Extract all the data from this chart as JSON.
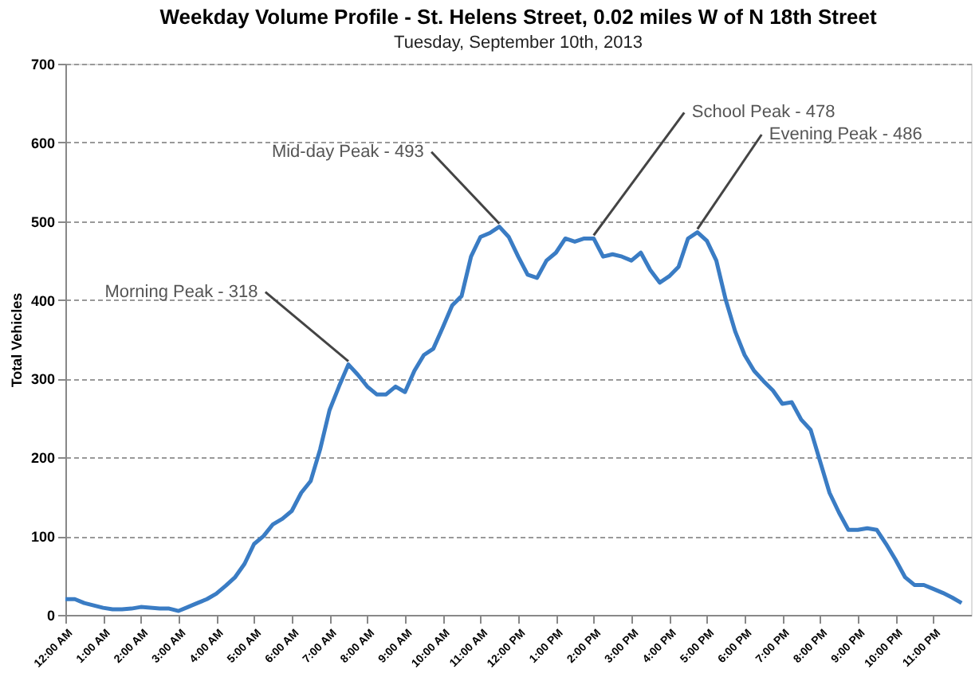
{
  "chart_data": {
    "type": "line",
    "title": "Weekday Volume Profile - St. Helens Street, 0.02 miles W of N 18th Street",
    "subtitle": "Tuesday, September 10th, 2013",
    "ylabel": "Total Vehicles",
    "x": [
      0,
      0.25,
      0.5,
      0.75,
      1,
      1.25,
      1.5,
      1.75,
      2,
      2.25,
      2.5,
      2.75,
      3,
      3.25,
      3.5,
      3.75,
      4,
      4.25,
      4.5,
      4.75,
      5,
      5.25,
      5.5,
      5.75,
      6,
      6.25,
      6.5,
      6.75,
      7,
      7.25,
      7.5,
      7.75,
      8,
      8.25,
      8.5,
      8.75,
      9,
      9.25,
      9.5,
      9.75,
      10,
      10.25,
      10.5,
      10.75,
      11,
      11.25,
      11.5,
      11.75,
      12,
      12.25,
      12.5,
      12.75,
      13,
      13.25,
      13.5,
      13.75,
      14,
      14.25,
      14.5,
      14.75,
      15,
      15.25,
      15.5,
      15.75,
      16,
      16.25,
      16.5,
      16.75,
      17,
      17.25,
      17.5,
      17.75,
      18,
      18.25,
      18.5,
      18.75,
      19,
      19.25,
      19.5,
      19.75,
      20,
      20.25,
      20.5,
      20.75,
      21,
      21.25,
      21.5,
      21.75,
      22,
      22.25,
      22.5,
      22.75,
      23,
      23.25,
      23.5,
      23.75
    ],
    "series": [
      {
        "color": "#3a7cc4",
        "values": [
          20,
          20,
          15,
          12,
          9,
          7,
          7,
          8,
          10,
          9,
          8,
          8,
          5,
          10,
          15,
          20,
          27,
          37,
          48,
          65,
          90,
          100,
          115,
          122,
          132,
          155,
          170,
          210,
          260,
          290,
          318,
          305,
          290,
          280,
          280,
          290,
          283,
          310,
          330,
          338,
          365,
          393,
          405,
          455,
          480,
          485,
          493,
          480,
          455,
          432,
          428,
          450,
          460,
          478,
          474,
          478,
          478,
          455,
          458,
          455,
          450,
          460,
          438,
          422,
          430,
          442,
          478,
          486,
          475,
          450,
          400,
          360,
          330,
          310,
          297,
          285,
          268,
          270,
          248,
          235,
          195,
          155,
          130,
          108,
          108,
          110,
          108,
          90,
          70,
          48,
          38,
          38,
          33,
          28,
          22,
          15
        ]
      }
    ],
    "xlim": [
      0,
      24
    ],
    "xticks": [
      {
        "value": 0,
        "label": "12:00 AM"
      },
      {
        "value": 1,
        "label": "1:00 AM"
      },
      {
        "value": 2,
        "label": "2:00 AM"
      },
      {
        "value": 3,
        "label": "3:00 AM"
      },
      {
        "value": 4,
        "label": "4:00 AM"
      },
      {
        "value": 5,
        "label": "5:00 AM"
      },
      {
        "value": 6,
        "label": "6:00 AM"
      },
      {
        "value": 7,
        "label": "7:00 AM"
      },
      {
        "value": 8,
        "label": "8:00 AM"
      },
      {
        "value": 9,
        "label": "9:00 AM"
      },
      {
        "value": 10,
        "label": "10:00 AM"
      },
      {
        "value": 11,
        "label": "11:00 AM"
      },
      {
        "value": 12,
        "label": "12:00 PM"
      },
      {
        "value": 13,
        "label": "1:00 PM"
      },
      {
        "value": 14,
        "label": "2:00 PM"
      },
      {
        "value": 15,
        "label": "3:00 PM"
      },
      {
        "value": 16,
        "label": "4:00 PM"
      },
      {
        "value": 17,
        "label": "5:00 PM"
      },
      {
        "value": 18,
        "label": "6:00 PM"
      },
      {
        "value": 19,
        "label": "7:00 PM"
      },
      {
        "value": 20,
        "label": "8:00 PM"
      },
      {
        "value": 21,
        "label": "9:00 PM"
      },
      {
        "value": 22,
        "label": "10:00 PM"
      },
      {
        "value": 23,
        "label": "11:00 PM"
      }
    ],
    "ylim": [
      0,
      700
    ],
    "yticks": [
      0,
      100,
      200,
      300,
      400,
      500,
      600,
      700
    ],
    "grid": "y",
    "marker": "none",
    "line_style": "solid",
    "annotations": [
      {
        "text": "Morning Peak - 318",
        "x": 7.5,
        "y": 318
      },
      {
        "text": "Mid-day Peak - 493",
        "x": 11.5,
        "y": 493
      },
      {
        "text": "School Peak - 478",
        "x": 14,
        "y": 478
      },
      {
        "text": "Evening Peak - 486",
        "x": 16.75,
        "y": 486
      }
    ]
  }
}
